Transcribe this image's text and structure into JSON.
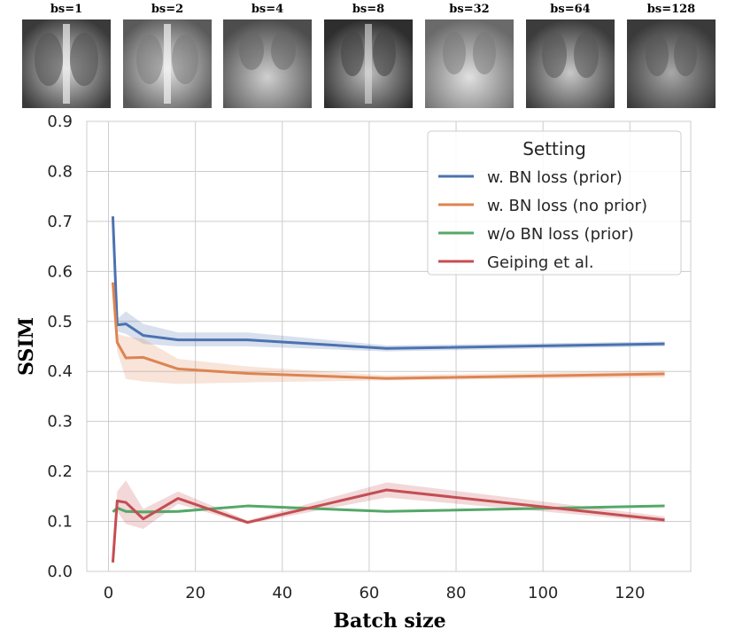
{
  "thumbnails": [
    {
      "label": "bs=1"
    },
    {
      "label": "bs=2"
    },
    {
      "label": "bs=4"
    },
    {
      "label": "bs=8"
    },
    {
      "label": "bs=32"
    },
    {
      "label": "bs=64"
    },
    {
      "label": "bs=128"
    }
  ],
  "chart_data": {
    "type": "line",
    "title": "",
    "xlabel": "Batch size",
    "ylabel": "SSIM",
    "xlim": [
      -5,
      134
    ],
    "ylim": [
      0.0,
      0.9
    ],
    "xticks": [
      0,
      20,
      40,
      60,
      80,
      100,
      120
    ],
    "yticks": [
      0.0,
      0.1,
      0.2,
      0.3,
      0.4,
      0.5,
      0.6,
      0.7,
      0.8,
      0.9
    ],
    "xtick_labels": [
      "0",
      "20",
      "40",
      "60",
      "80",
      "100",
      "120"
    ],
    "ytick_labels": [
      "0.0",
      "0.1",
      "0.2",
      "0.3",
      "0.4",
      "0.5",
      "0.6",
      "0.7",
      "0.8",
      "0.9"
    ],
    "grid": true,
    "legend": {
      "title": "Setting",
      "position": "top-right"
    },
    "x": [
      1,
      2,
      4,
      8,
      16,
      32,
      64,
      128
    ],
    "series": [
      {
        "name": "w. BN loss (prior)",
        "color": "#4c72b0",
        "values": [
          0.71,
          0.493,
          0.495,
          0.472,
          0.463,
          0.463,
          0.446,
          0.455
        ],
        "lower": [
          0.71,
          0.48,
          0.475,
          0.455,
          0.45,
          0.45,
          0.44,
          0.45
        ],
        "upper": [
          0.71,
          0.505,
          0.52,
          0.495,
          0.478,
          0.478,
          0.452,
          0.46
        ]
      },
      {
        "name": "w. BN loss (no prior)",
        "color": "#dd8452",
        "values": [
          0.578,
          0.458,
          0.427,
          0.428,
          0.405,
          0.396,
          0.386,
          0.395
        ],
        "lower": [
          0.578,
          0.44,
          0.385,
          0.38,
          0.375,
          0.378,
          0.382,
          0.388
        ],
        "upper": [
          0.578,
          0.475,
          0.47,
          0.465,
          0.425,
          0.41,
          0.392,
          0.402
        ]
      },
      {
        "name": "w/o BN loss (prior)",
        "color": "#55a868",
        "values": [
          0.119,
          0.127,
          0.12,
          0.119,
          0.12,
          0.131,
          0.12,
          0.131
        ],
        "lower": [
          0.119,
          0.124,
          0.117,
          0.116,
          0.117,
          0.129,
          0.118,
          0.129
        ],
        "upper": [
          0.119,
          0.13,
          0.123,
          0.122,
          0.123,
          0.133,
          0.122,
          0.133
        ]
      },
      {
        "name": "Geiping et al.",
        "color": "#c44e52",
        "values": [
          0.018,
          0.141,
          0.138,
          0.105,
          0.146,
          0.098,
          0.163,
          0.103
        ],
        "lower": [
          0.018,
          0.12,
          0.095,
          0.085,
          0.135,
          0.095,
          0.148,
          0.098
        ],
        "upper": [
          0.018,
          0.16,
          0.182,
          0.125,
          0.16,
          0.102,
          0.178,
          0.11
        ]
      }
    ]
  }
}
